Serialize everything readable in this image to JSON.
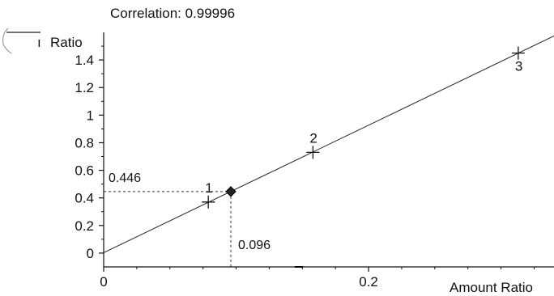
{
  "chart_data": {
    "type": "scatter",
    "title": "Correlation: 0.99996",
    "ylabel": "Ratio",
    "ylabel_visible_prefix": "ı",
    "xlabel": "Amount Ratio",
    "xlim": [
      0,
      0.34
    ],
    "ylim": [
      -0.1,
      1.6
    ],
    "y_ticks": [
      0,
      0.2,
      0.4,
      0.6,
      0.8,
      1,
      1.2,
      1.4
    ],
    "y_tick_labels": [
      "0",
      "0.2",
      "0.4",
      "0.6",
      "0.8",
      "1",
      "1.2",
      "1.4"
    ],
    "x_ticks": [
      0,
      0.2
    ],
    "x_tick_labels": [
      "0",
      "0.2"
    ],
    "calibration_points": [
      {
        "label": "1",
        "x": 0.079,
        "y": 0.37
      },
      {
        "label": "2",
        "x": 0.158,
        "y": 0.73
      },
      {
        "label": "3",
        "x": 0.313,
        "y": 1.45
      }
    ],
    "unknown_point": {
      "x": 0.096,
      "y": 0.446
    },
    "unknown_x_label": "0.096",
    "unknown_y_label": "0.446",
    "fit_line": {
      "slope": 4.62,
      "intercept": 0.003
    },
    "grid": false
  }
}
